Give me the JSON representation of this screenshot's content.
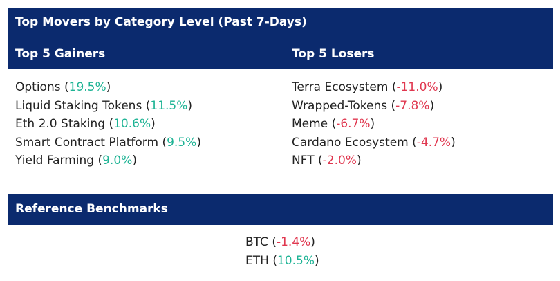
{
  "header": {
    "title": "Top Movers by Category Level (Past 7-Days)"
  },
  "gainers": {
    "title": "Top 5 Gainers",
    "items": [
      {
        "name": "Options",
        "change": "19.5%"
      },
      {
        "name": "Liquid Staking Tokens",
        "change": "11.5%"
      },
      {
        "name": "Eth 2.0 Staking",
        "change": "10.6%"
      },
      {
        "name": "Smart Contract Platform",
        "change": "9.5%"
      },
      {
        "name": "Yield Farming",
        "change": "9.0%"
      }
    ]
  },
  "losers": {
    "title": "Top 5 Losers",
    "items": [
      {
        "name": "Terra Ecosystem",
        "change": "-11.0%"
      },
      {
        "name": "Wrapped-Tokens",
        "change": "-7.8%"
      },
      {
        "name": "Meme",
        "change": "-6.7%"
      },
      {
        "name": "Cardano Ecosystem",
        "change": "-4.7%"
      },
      {
        "name": "NFT",
        "change": "-2.0%"
      }
    ]
  },
  "benchmarks": {
    "title": "Reference Benchmarks",
    "items": [
      {
        "name": "BTC",
        "change": "-1.4%"
      },
      {
        "name": "ETH",
        "change": "10.5%"
      }
    ]
  }
}
